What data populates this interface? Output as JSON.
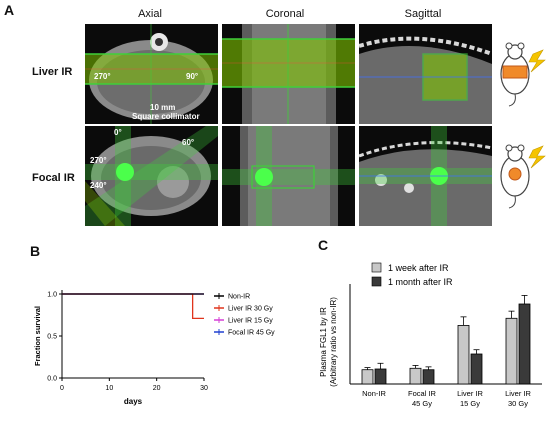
{
  "panel_a": {
    "letter": "A",
    "columns": [
      "Axial",
      "Coronal",
      "Sagittal"
    ],
    "rows": [
      "Liver IR",
      "Focal IR"
    ],
    "liver_axial_angles": [
      "270°",
      "90°"
    ],
    "collimator": [
      "10 mm",
      "Square collimator"
    ],
    "focal_axial_angles": [
      "0°",
      "60°",
      "270°",
      "240°"
    ],
    "colors": {
      "beam": "#3fcf3a",
      "overlay": "#9ad600",
      "bolt": "#f5c400",
      "organ": "#f08a2a"
    }
  },
  "panel_b": {
    "letter": "B",
    "chart_data": {
      "type": "line",
      "xlabel": "days",
      "ylabel": "Fraction survival",
      "xlim": [
        0,
        30
      ],
      "ylim": [
        0,
        1.0
      ],
      "x_ticks": [
        "0",
        "10",
        "20",
        "30"
      ],
      "y_ticks": [
        "0.0",
        "0.5",
        "1.0"
      ],
      "legend_position": "right",
      "series": [
        {
          "name": "Non-IR",
          "color": "#000000",
          "x": [
            0,
            30
          ],
          "y": [
            1.0,
            1.0
          ]
        },
        {
          "name": "Liver IR  30 Gy",
          "color": "#e0341c",
          "x": [
            0,
            27.6,
            27.6,
            30
          ],
          "y": [
            1.0,
            1.0,
            0.71,
            0.71
          ]
        },
        {
          "name": "Liver IR  15 Gy",
          "color": "#d63fd6",
          "x": [
            0,
            30
          ],
          "y": [
            1.0,
            1.0
          ]
        },
        {
          "name": "Focal IR  45 Gy",
          "color": "#2040d0",
          "x": [
            0,
            30
          ],
          "y": [
            1.0,
            1.0
          ]
        }
      ]
    }
  },
  "panel_c": {
    "letter": "C",
    "chart_data": {
      "type": "bar",
      "ylabel": [
        "Plasma FGL1 by IR",
        "(Arbitrary ratio vs non-IR)"
      ],
      "ylim": [
        0,
        7
      ],
      "categories": [
        [
          "Non-IR"
        ],
        [
          "Focal IR",
          "45 Gy"
        ],
        [
          "Liver IR",
          "15 Gy"
        ],
        [
          "Liver IR",
          "30 Gy"
        ]
      ],
      "legend_position": "top",
      "series": [
        {
          "name": "1 week after IR",
          "color": "#c8c8c8",
          "values": [
            1.0,
            1.1,
            4.1,
            4.6
          ],
          "errors": [
            0.15,
            0.2,
            0.6,
            0.5
          ]
        },
        {
          "name": "1 month after IR",
          "color": "#3a3a3a",
          "values": [
            1.05,
            1.0,
            2.1,
            5.6
          ],
          "errors": [
            0.4,
            0.2,
            0.3,
            0.6
          ]
        }
      ]
    }
  }
}
